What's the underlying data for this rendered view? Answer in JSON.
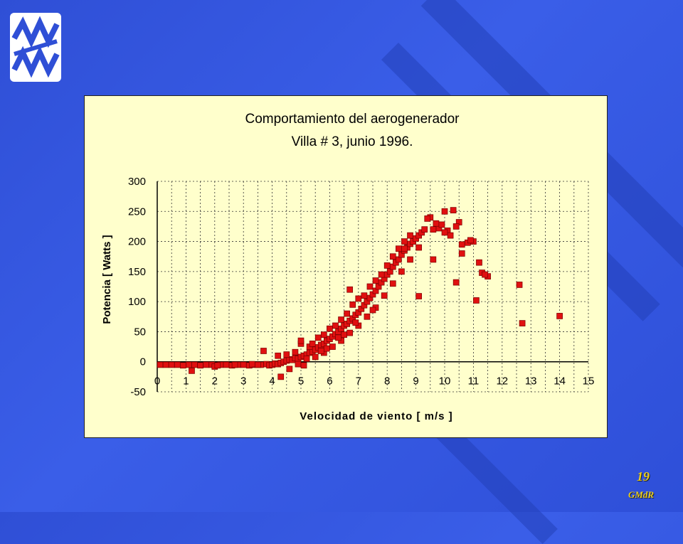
{
  "slide": {
    "page_number": "19",
    "organization": "GMdR",
    "accent_color": "#e9cc1f",
    "background_color": "#3a5ee8",
    "logo_icon": "wave-logo-icon"
  },
  "chart_data": {
    "type": "scatter",
    "title": "Comportamiento del aerogenerador",
    "subtitle": "Villa # 3, junio 1996.",
    "xlabel": "Velocidad de viento [ m/s ]",
    "ylabel": "Potencia [ Watts ]",
    "xlim": [
      0,
      15
    ],
    "ylim": [
      -50,
      300
    ],
    "xticks": [
      "0",
      "1",
      "2",
      "3",
      "4",
      "5",
      "6",
      "7",
      "8",
      "9",
      "10",
      "11",
      "12",
      "13",
      "14",
      "15"
    ],
    "yticks": [
      "-50",
      "0",
      "50",
      "100",
      "150",
      "200",
      "250",
      "300"
    ],
    "grid": true,
    "marker_color": "#e01010",
    "background_color": "#ffffcc",
    "points": [
      [
        0.1,
        -5
      ],
      [
        0.3,
        -5
      ],
      [
        0.5,
        -5
      ],
      [
        0.7,
        -5
      ],
      [
        0.9,
        -6
      ],
      [
        1.1,
        -5
      ],
      [
        1.3,
        -5
      ],
      [
        1.5,
        -6
      ],
      [
        1.7,
        -5
      ],
      [
        1.9,
        -5
      ],
      [
        2.0,
        -8
      ],
      [
        2.2,
        -5
      ],
      [
        2.4,
        -5
      ],
      [
        2.6,
        -6
      ],
      [
        2.8,
        -5
      ],
      [
        3.0,
        -5
      ],
      [
        3.2,
        -6
      ],
      [
        3.4,
        -5
      ],
      [
        3.6,
        -5
      ],
      [
        3.8,
        -4
      ],
      [
        1.2,
        -15
      ],
      [
        2.1,
        -6
      ],
      [
        2.7,
        -5
      ],
      [
        3.3,
        -4
      ],
      [
        3.5,
        -5
      ],
      [
        3.9,
        -6
      ],
      [
        4.0,
        -5
      ],
      [
        4.1,
        -3
      ],
      [
        4.2,
        -4
      ],
      [
        4.3,
        -2
      ],
      [
        4.4,
        0
      ],
      [
        4.5,
        2
      ],
      [
        4.6,
        4
      ],
      [
        4.7,
        3
      ],
      [
        4.8,
        6
      ],
      [
        4.9,
        5
      ],
      [
        5.0,
        8
      ],
      [
        5.1,
        10
      ],
      [
        5.2,
        12
      ],
      [
        5.3,
        15
      ],
      [
        5.4,
        17
      ],
      [
        5.5,
        20
      ],
      [
        5.6,
        24
      ],
      [
        5.7,
        28
      ],
      [
        5.8,
        30
      ],
      [
        5.9,
        35
      ],
      [
        6.0,
        38
      ],
      [
        6.1,
        42
      ],
      [
        6.2,
        46
      ],
      [
        6.3,
        50
      ],
      [
        6.4,
        55
      ],
      [
        6.5,
        60
      ],
      [
        6.6,
        63
      ],
      [
        6.7,
        68
      ],
      [
        6.8,
        72
      ],
      [
        6.9,
        78
      ],
      [
        7.0,
        82
      ],
      [
        7.1,
        88
      ],
      [
        7.2,
        94
      ],
      [
        7.3,
        100
      ],
      [
        7.4,
        106
      ],
      [
        7.5,
        112
      ],
      [
        7.6,
        118
      ],
      [
        7.7,
        125
      ],
      [
        7.8,
        132
      ],
      [
        7.9,
        138
      ],
      [
        8.0,
        145
      ],
      [
        8.1,
        150
      ],
      [
        8.2,
        158
      ],
      [
        8.3,
        165
      ],
      [
        8.4,
        170
      ],
      [
        8.5,
        178
      ],
      [
        8.6,
        185
      ],
      [
        8.7,
        190
      ],
      [
        8.8,
        196
      ],
      [
        8.9,
        200
      ],
      [
        9.0,
        205
      ],
      [
        9.1,
        210
      ],
      [
        9.2,
        215
      ],
      [
        9.3,
        220
      ],
      [
        5.0,
        30
      ],
      [
        5.3,
        25
      ],
      [
        5.6,
        40
      ],
      [
        5.8,
        45
      ],
      [
        6.0,
        55
      ],
      [
        6.2,
        60
      ],
      [
        6.4,
        70
      ],
      [
        6.6,
        80
      ],
      [
        6.8,
        95
      ],
      [
        6.7,
        120
      ],
      [
        7.0,
        105
      ],
      [
        7.2,
        110
      ],
      [
        7.4,
        125
      ],
      [
        7.6,
        135
      ],
      [
        7.8,
        145
      ],
      [
        8.0,
        160
      ],
      [
        8.2,
        175
      ],
      [
        8.4,
        188
      ],
      [
        8.6,
        200
      ],
      [
        8.8,
        210
      ],
      [
        5.2,
        5
      ],
      [
        5.5,
        8
      ],
      [
        5.8,
        15
      ],
      [
        6.1,
        25
      ],
      [
        6.4,
        35
      ],
      [
        6.7,
        48
      ],
      [
        7.0,
        60
      ],
      [
        7.3,
        75
      ],
      [
        7.6,
        90
      ],
      [
        7.9,
        110
      ],
      [
        8.2,
        130
      ],
      [
        8.5,
        150
      ],
      [
        8.8,
        170
      ],
      [
        9.1,
        190
      ],
      [
        7.5,
        86
      ],
      [
        6.9,
        65
      ],
      [
        6.3,
        40
      ],
      [
        5.7,
        18
      ],
      [
        5.9,
        22
      ],
      [
        6.5,
        45
      ],
      [
        3.7,
        18
      ],
      [
        4.3,
        -25
      ],
      [
        4.6,
        -12
      ],
      [
        4.9,
        -4
      ],
      [
        5.1,
        -6
      ],
      [
        4.8,
        16
      ],
      [
        5.0,
        35
      ],
      [
        4.2,
        10
      ],
      [
        4.5,
        12
      ],
      [
        5.4,
        30
      ],
      [
        9.5,
        240
      ],
      [
        9.8,
        222
      ],
      [
        10.0,
        250
      ],
      [
        10.1,
        218
      ],
      [
        10.3,
        252
      ],
      [
        10.5,
        232
      ],
      [
        10.4,
        225
      ],
      [
        10.6,
        195
      ],
      [
        10.8,
        198
      ],
      [
        11.0,
        200
      ],
      [
        9.7,
        230
      ],
      [
        9.9,
        228
      ],
      [
        10.2,
        210
      ],
      [
        10.6,
        180
      ],
      [
        11.2,
        165
      ],
      [
        11.3,
        148
      ],
      [
        11.5,
        142
      ],
      [
        9.6,
        170
      ],
      [
        10.4,
        132
      ],
      [
        11.1,
        102
      ],
      [
        9.1,
        109
      ],
      [
        12.6,
        128
      ],
      [
        12.7,
        64
      ],
      [
        14.0,
        76
      ],
      [
        9.4,
        238
      ],
      [
        9.6,
        220
      ],
      [
        10.0,
        215
      ],
      [
        10.9,
        202
      ],
      [
        11.4,
        145
      ],
      [
        8.6,
        188
      ]
    ]
  }
}
